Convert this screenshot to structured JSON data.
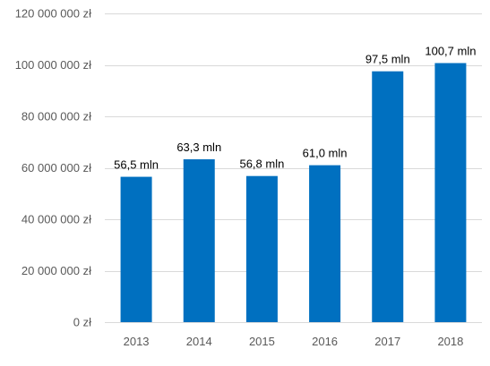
{
  "chart_data": {
    "type": "bar",
    "categories": [
      "2013",
      "2014",
      "2015",
      "2016",
      "2017",
      "2018"
    ],
    "values": [
      56500000,
      63300000,
      56800000,
      61000000,
      97500000,
      100700000
    ],
    "data_labels": [
      "56,5 mln",
      "63,3 mln",
      "56,8 mln",
      "61,0 mln",
      "97,5 mln",
      "100,7 mln"
    ],
    "y_ticks": [
      0,
      20000000,
      40000000,
      60000000,
      80000000,
      100000000,
      120000000
    ],
    "y_tick_labels": [
      "0 zł",
      "20 000 000 zł",
      "40 000 000 zł",
      "60 000 000 zł",
      "80 000 000 zł",
      "100 000 000 zł",
      "120 000 000 zł"
    ],
    "ylim": [
      0,
      120000000
    ],
    "title": "",
    "xlabel": "",
    "ylabel": "",
    "grid": true,
    "legend": "none",
    "colors": {
      "bar": "#0070c0"
    }
  }
}
